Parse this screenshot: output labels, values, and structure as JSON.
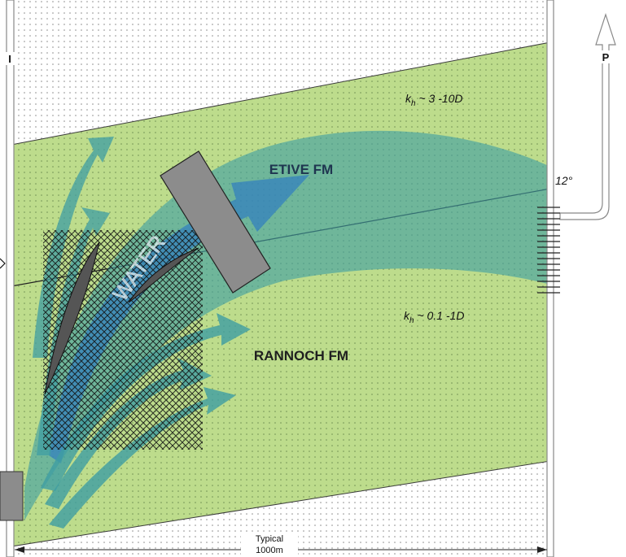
{
  "wells": {
    "injector_label": "I",
    "producer_label": "P"
  },
  "formations": {
    "upper_name": "ETIVE FM",
    "upper_perm_sym": "k",
    "upper_perm_sub": "h",
    "upper_perm_value": " ~ 3 -10D",
    "lower_name": "RANNOCH FM",
    "lower_perm_sym": "k",
    "lower_perm_sub": "h",
    "lower_perm_value": " ~ 0.1 -1D"
  },
  "flow": {
    "fluid_label": "WATER"
  },
  "geometry_note": {
    "dip_angle": "12°"
  },
  "scale": {
    "label_line1": "Typical",
    "label_line2": "1000m"
  },
  "colors": {
    "sandstone_green": "#bddc8c",
    "flow_teal": "#3f9ea3",
    "flow_blue": "#2f7ec0",
    "well_grey": "#8c8c8c",
    "baffle_dark": "#555555"
  }
}
